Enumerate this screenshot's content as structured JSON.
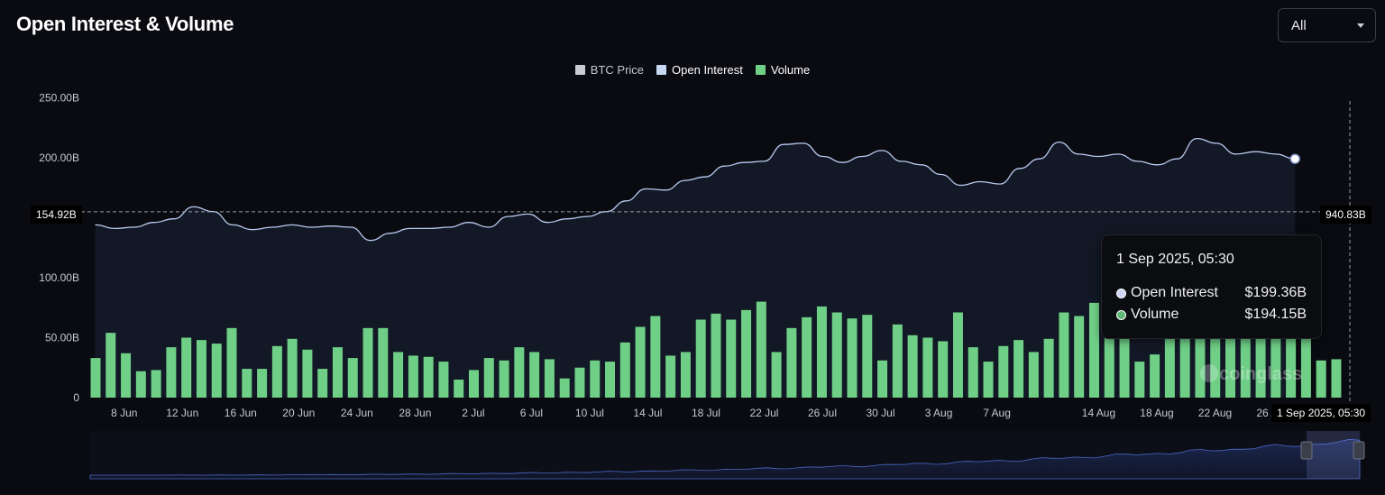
{
  "header": {
    "title": "Open Interest & Volume",
    "range_value": "All"
  },
  "legend": [
    {
      "label": "BTC Price",
      "color": "#c9ccd3"
    },
    {
      "label": "Open Interest",
      "color": "#c7d8f5"
    },
    {
      "label": "Volume",
      "color": "#6fcf87"
    }
  ],
  "crosshair": {
    "y_label": "154.92B",
    "price_label": "940.83B",
    "time_label": "1 Sep 2025, 05:30"
  },
  "tooltip": {
    "time": "1 Sep 2025, 05:30",
    "rows": [
      {
        "label": "Open Interest",
        "value": "$199.36B",
        "dot_color": "#d0d6f4"
      },
      {
        "label": "Volume",
        "value": "$194.15B",
        "dot_color": "#5fb874"
      }
    ]
  },
  "watermark": "coinglass",
  "chart_data": {
    "type": "bar",
    "y_ticks": [
      "0",
      "50.00B",
      "100.00B",
      "200.00B",
      "250.00B"
    ],
    "y_tick_values": [
      0,
      50,
      100,
      200,
      250
    ],
    "ylim": [
      0,
      250
    ],
    "x_ticks": [
      "8 Jun",
      "12 Jun",
      "16 Jun",
      "20 Jun",
      "24 Jun",
      "28 Jun",
      "2 Jul",
      "6 Jul",
      "10 Jul",
      "14 Jul",
      "18 Jul",
      "22 Jul",
      "26 Jul",
      "30 Jul",
      "3 Aug",
      "7 Aug",
      "14 Aug",
      "18 Aug",
      "22 Aug",
      "26 Aug"
    ],
    "x_tick_days": [
      2,
      6,
      10,
      14,
      18,
      22,
      26,
      30,
      34,
      38,
      42,
      46,
      50,
      54,
      58,
      62,
      69,
      73,
      77,
      81
    ],
    "series": [
      {
        "name": "Volume",
        "unit": "B",
        "values": [
          33,
          54,
          37,
          22,
          23,
          42,
          50,
          48,
          45,
          58,
          24,
          24,
          43,
          49,
          40,
          24,
          42,
          33,
          58,
          58,
          38,
          35,
          34,
          30,
          15,
          23,
          33,
          31,
          42,
          38,
          32,
          16,
          25,
          31,
          30,
          46,
          59,
          68,
          35,
          38,
          65,
          70,
          65,
          73,
          80,
          38,
          58,
          67,
          76,
          71,
          66,
          69,
          31,
          61,
          52,
          50,
          47,
          71,
          42,
          30,
          43,
          48,
          38,
          49,
          71,
          68,
          79,
          99,
          90,
          30,
          36,
          71,
          73,
          75,
          53,
          70,
          55,
          60,
          68,
          70,
          66,
          31,
          32
        ],
        "color": "#6fcf87"
      },
      {
        "name": "Open Interest",
        "unit": "B",
        "points": [
          [
            0,
            144
          ],
          [
            1,
            141
          ],
          [
            2,
            142
          ],
          [
            3,
            146
          ],
          [
            4,
            149
          ],
          [
            5,
            159
          ],
          [
            6,
            155
          ],
          [
            7,
            144
          ],
          [
            8,
            140
          ],
          [
            9,
            142
          ],
          [
            10,
            144
          ],
          [
            11,
            142
          ],
          [
            12,
            143
          ],
          [
            13,
            142
          ],
          [
            14,
            131
          ],
          [
            15,
            137
          ],
          [
            16,
            141
          ],
          [
            17,
            141
          ],
          [
            18,
            142
          ],
          [
            19,
            146
          ],
          [
            20,
            142
          ],
          [
            21,
            151
          ],
          [
            22,
            153
          ],
          [
            23,
            146
          ],
          [
            24,
            149
          ],
          [
            25,
            151
          ],
          [
            26,
            155
          ],
          [
            27,
            164
          ],
          [
            28,
            174
          ],
          [
            29,
            173
          ],
          [
            30,
            181
          ],
          [
            31,
            184
          ],
          [
            32,
            193
          ],
          [
            33,
            196
          ],
          [
            34,
            197
          ],
          [
            35,
            211
          ],
          [
            36,
            212
          ],
          [
            37,
            201
          ],
          [
            38,
            196
          ],
          [
            39,
            201
          ],
          [
            40,
            206
          ],
          [
            41,
            197
          ],
          [
            42,
            194
          ],
          [
            43,
            186
          ],
          [
            44,
            177
          ],
          [
            45,
            180
          ],
          [
            46,
            178
          ],
          [
            47,
            191
          ],
          [
            48,
            199
          ],
          [
            49,
            213
          ],
          [
            50,
            203
          ],
          [
            51,
            201
          ],
          [
            52,
            203
          ],
          [
            53,
            197
          ],
          [
            54,
            194
          ],
          [
            55,
            199
          ],
          [
            56,
            216
          ],
          [
            57,
            212
          ],
          [
            58,
            203
          ],
          [
            59,
            205
          ],
          [
            60,
            203
          ],
          [
            61,
            199
          ]
        ],
        "x_scale": "index_to_day_ratio_1.3525",
        "color": "#b8c9f0"
      }
    ],
    "crosshair_value": 154.92,
    "grid": false,
    "legend_position": "top-center"
  }
}
